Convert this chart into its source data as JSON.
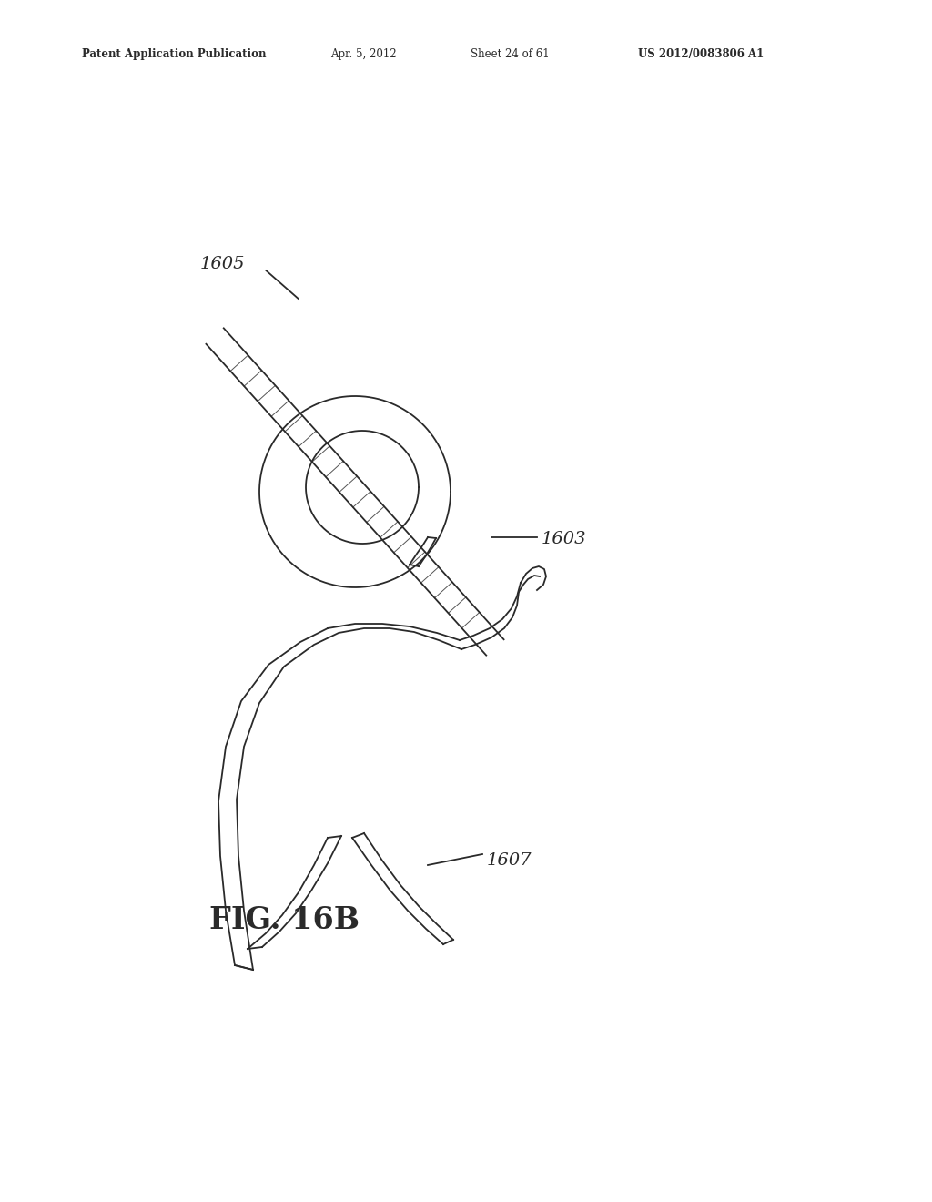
{
  "bg_color": "#ffffff",
  "line_color": "#2a2a2a",
  "header_text": "Patent Application Publication",
  "header_date": "Apr. 5, 2012",
  "header_sheet": "Sheet 24 of 61",
  "header_patent": "US 2012/0083806 A1",
  "fig_label": "FIG. 16B",
  "label_1605": "1605",
  "label_1603": "1603",
  "label_1607": "1607",
  "lw_main": 1.3
}
